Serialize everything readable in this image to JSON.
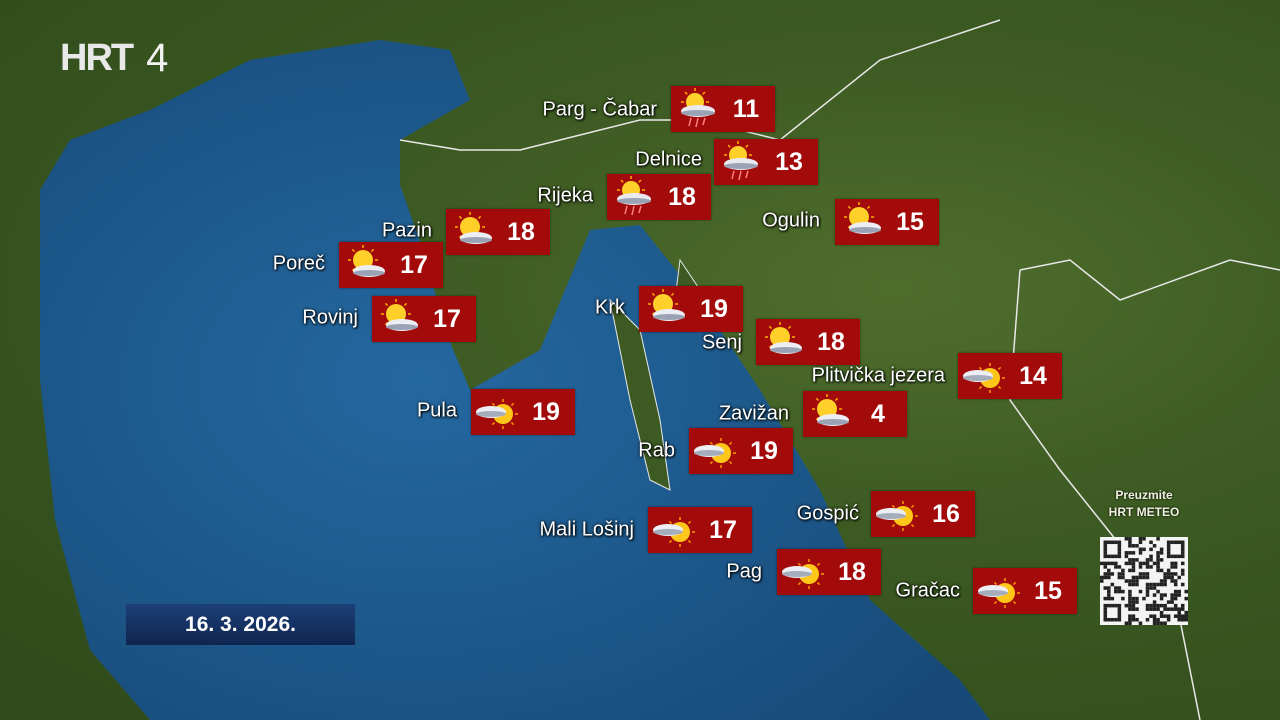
{
  "channel_logo": {
    "brand": "HRT",
    "number": "4",
    "brand_color": "#d0021b"
  },
  "date": "16. 3. 2026.",
  "qr_promo": {
    "line1": "Preuzmite",
    "line2": "HRT METEO"
  },
  "colors": {
    "box": "#a30b0b",
    "sea": "#1f5a8c",
    "land": "#3c5a22"
  },
  "stations": [
    {
      "name": "Parg - Čabar",
      "temp": "11",
      "icon": "sun-cloud-rain-icon"
    },
    {
      "name": "Delnice",
      "temp": "13",
      "icon": "sun-cloud-rain-icon"
    },
    {
      "name": "Rijeka",
      "temp": "18",
      "icon": "sun-cloud-rain-icon"
    },
    {
      "name": "Pazin",
      "temp": "18",
      "icon": "sun-behind-cloud-icon"
    },
    {
      "name": "Ogulin",
      "temp": "15",
      "icon": "sun-behind-cloud-icon"
    },
    {
      "name": "Poreč",
      "temp": "17",
      "icon": "sun-behind-cloud-icon"
    },
    {
      "name": "Rovinj",
      "temp": "17",
      "icon": "sun-behind-cloud-icon"
    },
    {
      "name": "Krk",
      "temp": "19",
      "icon": "sun-behind-cloud-icon"
    },
    {
      "name": "Senj",
      "temp": "18",
      "icon": "sun-behind-cloud-icon"
    },
    {
      "name": "Plitvička jezera",
      "temp": "14",
      "icon": "cloud-sun-icon"
    },
    {
      "name": "Pula",
      "temp": "19",
      "icon": "cloud-sun-icon"
    },
    {
      "name": "Zavižan",
      "temp": "4",
      "icon": "sun-behind-cloud-icon"
    },
    {
      "name": "Rab",
      "temp": "19",
      "icon": "cloud-sun-icon"
    },
    {
      "name": "Gospić",
      "temp": "16",
      "icon": "cloud-sun-icon"
    },
    {
      "name": "Mali Lošinj",
      "temp": "17",
      "icon": "cloud-sun-icon"
    },
    {
      "name": "Pag",
      "temp": "18",
      "icon": "cloud-sun-icon"
    },
    {
      "name": "Gračac",
      "temp": "15",
      "icon": "cloud-sun-icon"
    }
  ]
}
